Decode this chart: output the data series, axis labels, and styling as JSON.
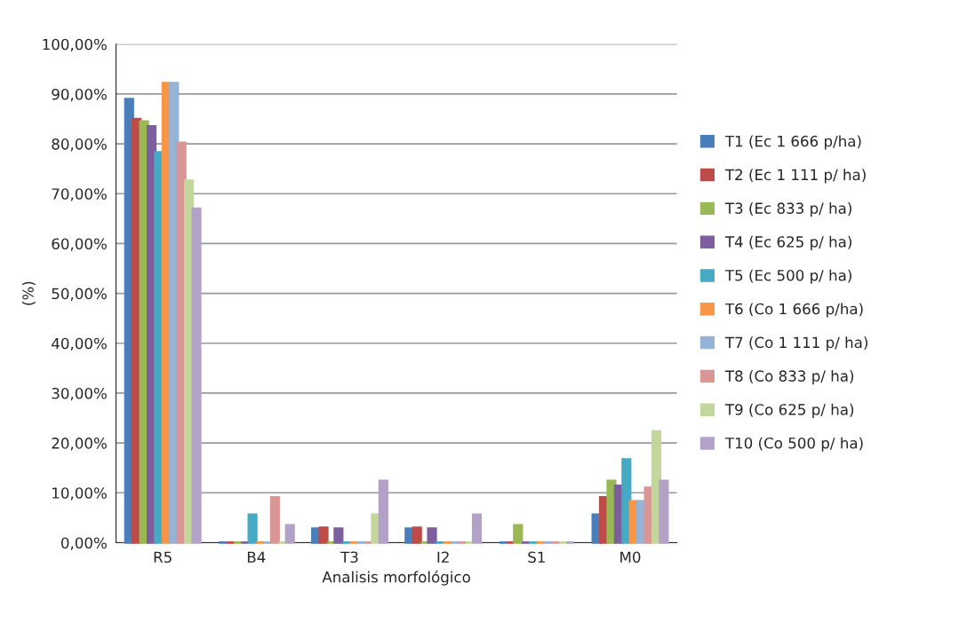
{
  "chart_data": {
    "type": "bar",
    "xlabel": "Analisis morfológico",
    "ylabel": "(%)",
    "categories": [
      "R5",
      "B4",
      "T3",
      "I2",
      "S1",
      "M0"
    ],
    "ylim": [
      0,
      100
    ],
    "yticks": [
      {
        "value": 0,
        "label": "0,00%"
      },
      {
        "value": 10,
        "label": "10,00%"
      },
      {
        "value": 20,
        "label": "20,00%"
      },
      {
        "value": 30,
        "label": "30,00%"
      },
      {
        "value": 40,
        "label": "40,00%"
      },
      {
        "value": 50,
        "label": "50,00%"
      },
      {
        "value": 60,
        "label": "60,00%"
      },
      {
        "value": 70,
        "label": "70,00%"
      },
      {
        "value": 80,
        "label": "80,00%"
      },
      {
        "value": 90,
        "label": "90,00%"
      },
      {
        "value": 100,
        "label": "100,00%"
      }
    ],
    "grid": "y",
    "legend": "right",
    "series": [
      {
        "name": "T1 (Ec 1 666 p/ha)",
        "color": "#4a7ebb",
        "values": [
          89,
          0,
          2.8,
          2.8,
          0,
          5.6
        ]
      },
      {
        "name": "T2 (Ec 1 111 p/ ha)",
        "color": "#be4b48",
        "values": [
          85,
          0,
          3,
          3,
          0,
          9.1
        ]
      },
      {
        "name": "T3 (Ec 833 p/ ha)",
        "color": "#98b954",
        "values": [
          84.5,
          0,
          0,
          0,
          3.5,
          12.4
        ]
      },
      {
        "name": "T4 (Ec 625 p/ ha)",
        "color": "#7d5fa0",
        "values": [
          83.5,
          0,
          2.8,
          2.8,
          0,
          11.4
        ]
      },
      {
        "name": "T5 (Ec 500 p/ ha)",
        "color": "#46aac5",
        "values": [
          78.3,
          5.6,
          0,
          0,
          0,
          16.7
        ]
      },
      {
        "name": "T6 (Co 1 666 p/ha)",
        "color": "#f79646",
        "values": [
          92.2,
          0,
          0,
          0,
          0,
          8.3
        ]
      },
      {
        "name": "T7 (Co 1 111 p/ ha)",
        "color": "#94b3d6",
        "values": [
          92.2,
          0,
          0,
          0,
          0,
          8.3
        ]
      },
      {
        "name": "T8 (Co 833 p/ ha)",
        "color": "#d99694",
        "values": [
          80.2,
          9.1,
          0,
          0,
          0,
          11
        ]
      },
      {
        "name": "T9 (Co 625 p/ ha)",
        "color": "#c3d69b",
        "values": [
          72.6,
          0,
          5.6,
          0,
          0,
          22.3
        ]
      },
      {
        "name": "T10 (Co 500 p/ ha)",
        "color": "#b3a2c7",
        "values": [
          67,
          3.5,
          12.4,
          5.6,
          0,
          12.4
        ]
      }
    ]
  }
}
